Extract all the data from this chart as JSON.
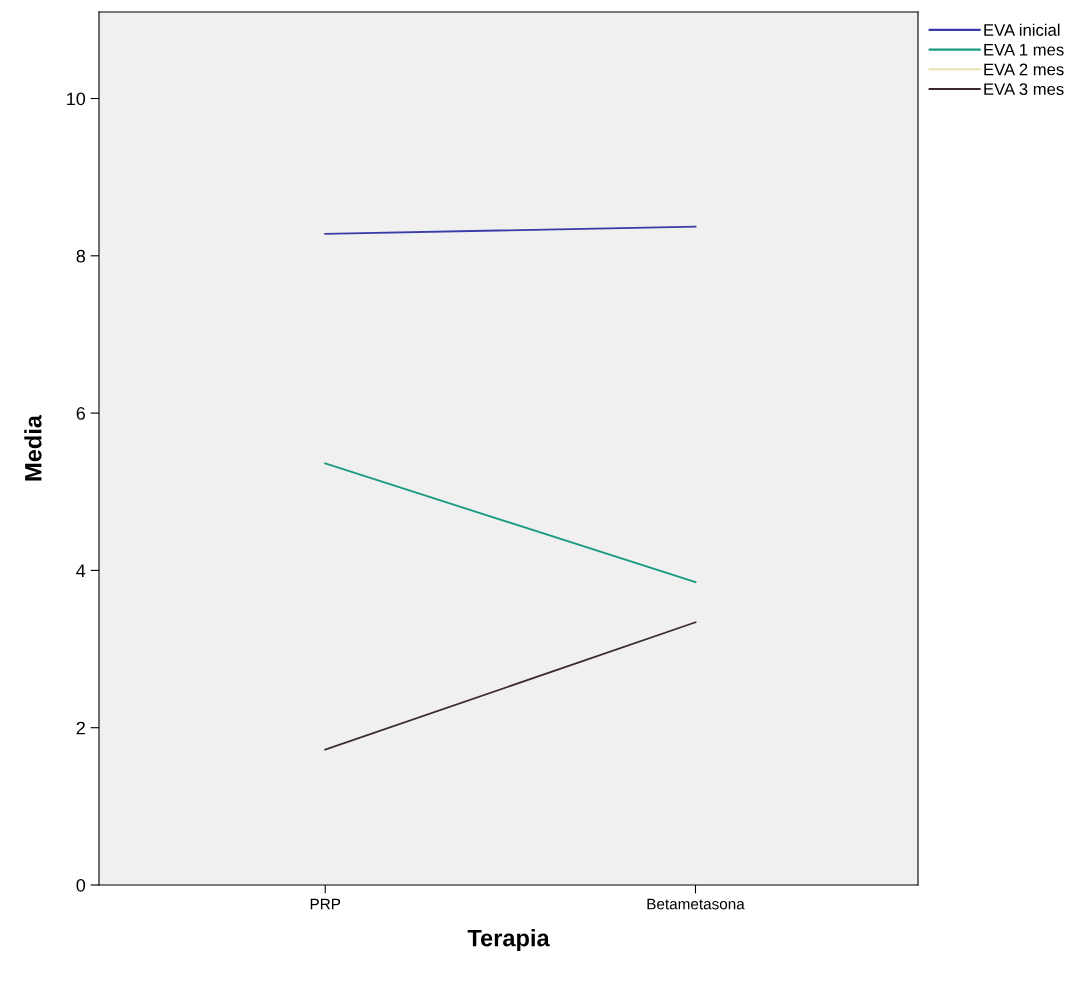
{
  "chart_data": {
    "type": "line",
    "xlabel": "Terapia",
    "ylabel": "Media",
    "categories": [
      "PRP",
      "Betametasona"
    ],
    "series": [
      {
        "name": "EVA inicial",
        "color": "#3a3aa8",
        "values": [
          8.28,
          8.37
        ]
      },
      {
        "name": "EVA 1 mes",
        "color": "#1a9a80",
        "values": [
          5.36,
          3.85
        ]
      },
      {
        "name": "EVA 2 mes",
        "color": "#e8e0b0",
        "values": [
          null,
          null
        ]
      },
      {
        "name": "EVA 3 mes",
        "color": "#3a2a2a",
        "values": [
          1.72,
          3.34
        ]
      }
    ],
    "ylim": [
      0,
      11.1
    ],
    "yticks": [
      0,
      2,
      4,
      6,
      8,
      10
    ],
    "grid": false,
    "legend": "top right",
    "marker": "none",
    "line_style": "solid"
  }
}
